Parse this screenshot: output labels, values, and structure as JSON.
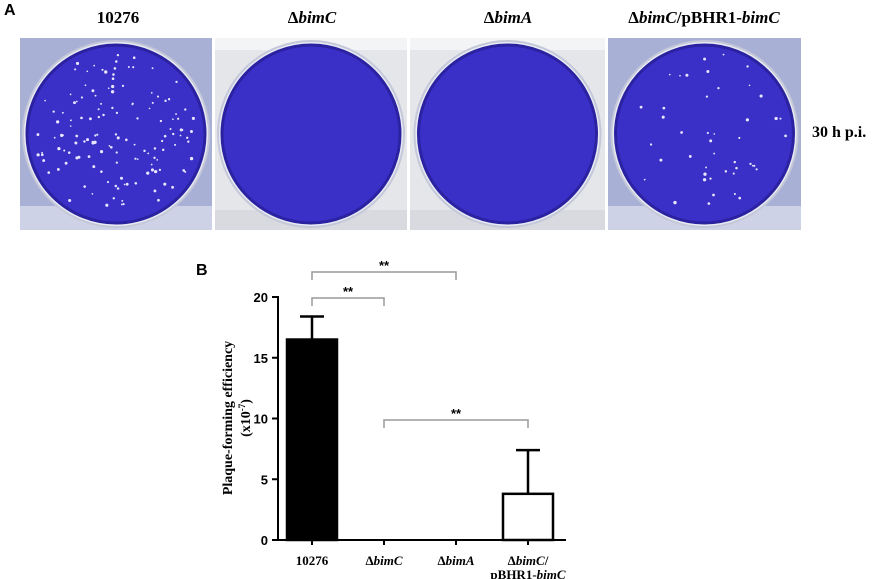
{
  "panel_a": {
    "letter": "A",
    "plates": [
      {
        "id": "p1",
        "label_parts": [
          {
            "text": "10276",
            "italic": false
          }
        ],
        "plaques": "many",
        "frame": "dark"
      },
      {
        "id": "p2",
        "label_parts": [
          {
            "text": "Δ",
            "italic": false
          },
          {
            "text": "bimC",
            "italic": true
          }
        ],
        "plaques": "none",
        "frame": "light"
      },
      {
        "id": "p3",
        "label_parts": [
          {
            "text": "Δ",
            "italic": false
          },
          {
            "text": "bimA",
            "italic": true
          }
        ],
        "plaques": "none",
        "frame": "light"
      },
      {
        "id": "p4",
        "label_parts": [
          {
            "text": "Δ",
            "italic": false
          },
          {
            "text": "bimC",
            "italic": true
          },
          {
            "text": "/pBHR1-",
            "italic": false
          },
          {
            "text": "bimC",
            "italic": true
          }
        ],
        "plaques": "few",
        "frame": "dark"
      }
    ],
    "timepoint": "30 h p.i.",
    "plate_color": "#3a2fc6"
  },
  "panel_b": {
    "letter": "B"
  },
  "chart_data": {
    "type": "bar",
    "categories": [
      "10276",
      "ΔbimC",
      "ΔbimA",
      "ΔbimC/ pBHR1-bimC"
    ],
    "category_labels": [
      [
        [
          {
            "text": "10276",
            "italic": false
          }
        ]
      ],
      [
        [
          {
            "text": "Δ",
            "italic": false
          },
          {
            "text": "bimC",
            "italic": true
          }
        ]
      ],
      [
        [
          {
            "text": "Δ",
            "italic": false
          },
          {
            "text": "bimA",
            "italic": true
          }
        ]
      ],
      [
        [
          {
            "text": "Δ",
            "italic": false
          },
          {
            "text": "bimC",
            "italic": true
          },
          {
            "text": "/",
            "italic": false
          }
        ],
        [
          {
            "text": "pBHR1-",
            "italic": false
          },
          {
            "text": "bimC",
            "italic": true
          }
        ]
      ]
    ],
    "values": [
      16.5,
      0,
      0,
      3.8
    ],
    "errors": [
      1.9,
      0,
      0,
      3.6
    ],
    "bar_fills": [
      "#000000",
      "#ffffff",
      "#ffffff",
      "#ffffff"
    ],
    "ylabel_line1": "Plaque-forming efficiency",
    "ylabel_line2_base": "(x10",
    "ylabel_line2_sup": "-7",
    "ylabel_line2_end": ")",
    "ylim": [
      0,
      20
    ],
    "yticks": [
      0,
      5,
      10,
      15,
      20
    ],
    "grid": false,
    "significance": [
      {
        "from": 0,
        "to": 2,
        "label": "**"
      },
      {
        "from": 0,
        "to": 1,
        "label": "**"
      },
      {
        "from": 1,
        "to": 3,
        "label": "**"
      }
    ]
  }
}
